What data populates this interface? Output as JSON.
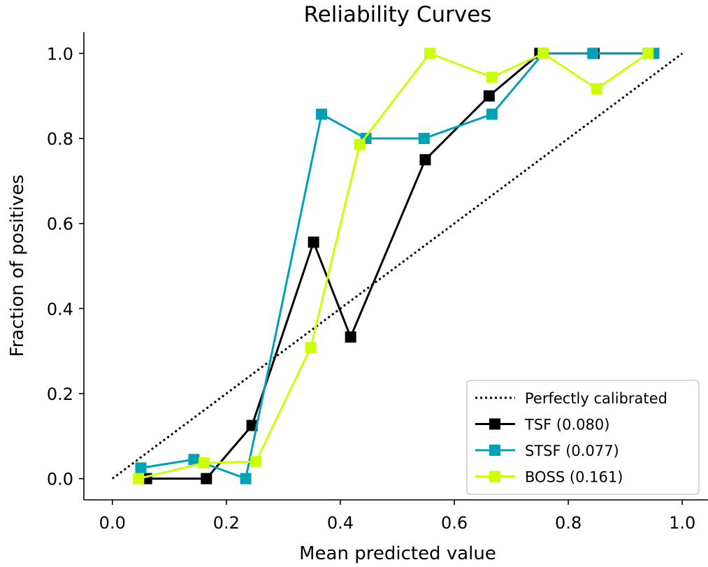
{
  "chart_data": {
    "type": "line",
    "title": "Reliability Curves",
    "xlabel": "Mean predicted value",
    "ylabel": "Fraction of positives",
    "xlim": [
      -0.05,
      1.05
    ],
    "ylim": [
      -0.05,
      1.05
    ],
    "xticks": [
      "0.0",
      "0.2",
      "0.4",
      "0.6",
      "0.8",
      "1.0"
    ],
    "yticks": [
      "0.0",
      "0.2",
      "0.4",
      "0.6",
      "0.8",
      "1.0"
    ],
    "grid": false,
    "legend_position": "lower-right",
    "reference": {
      "name": "Perfectly calibrated",
      "color": "#000000",
      "style": "dotted",
      "x": [
        0.0,
        1.0
      ],
      "y": [
        0.0,
        1.0
      ]
    },
    "series": [
      {
        "name": "TSF (0.080)",
        "color": "#000000",
        "marker": "square",
        "x": [
          0.06,
          0.165,
          0.245,
          0.353,
          0.418,
          0.549,
          0.661,
          0.75,
          0.845,
          0.94
        ],
        "y": [
          0.0,
          0.0,
          0.125,
          0.556,
          0.333,
          0.75,
          0.9,
          1.0,
          1.0,
          1.0
        ]
      },
      {
        "name": "STSF (0.077)",
        "color": "#00a0b8",
        "marker": "square",
        "x": [
          0.05,
          0.143,
          0.234,
          0.367,
          0.445,
          0.547,
          0.666,
          0.756,
          0.843,
          0.95
        ],
        "y": [
          0.025,
          0.045,
          0.0,
          0.857,
          0.8,
          0.8,
          0.857,
          1.0,
          1.0,
          1.0
        ]
      },
      {
        "name": "BOSS (0.161)",
        "color": "#ccff00",
        "marker": "square",
        "x": [
          0.046,
          0.161,
          0.252,
          0.348,
          0.434,
          0.557,
          0.666,
          0.756,
          0.85,
          0.94
        ],
        "y": [
          0.0,
          0.037,
          0.04,
          0.308,
          0.786,
          1.0,
          0.944,
          1.0,
          0.917,
          1.0
        ]
      }
    ]
  }
}
